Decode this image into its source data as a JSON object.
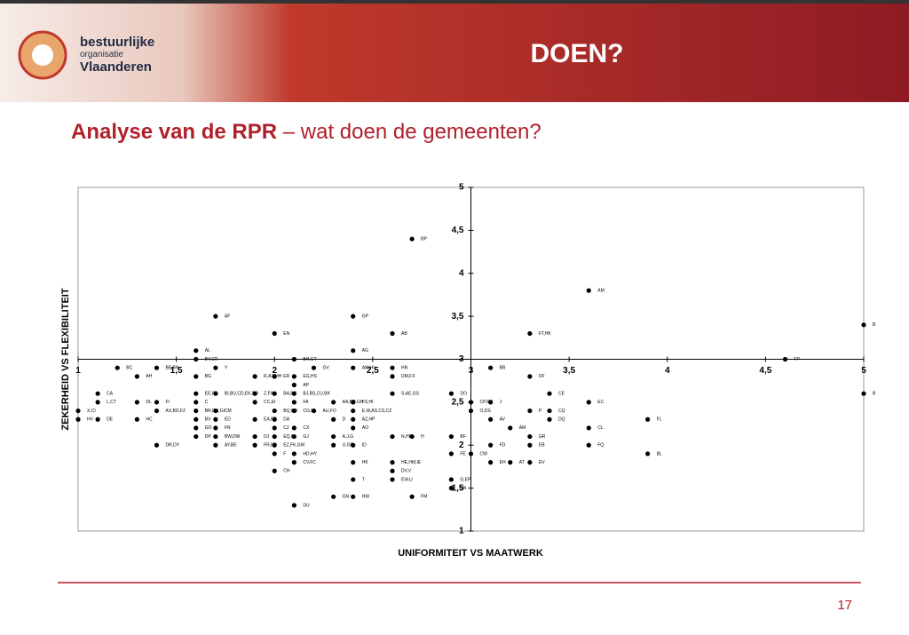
{
  "header": {
    "logo": [
      "bestuurlijke",
      "organisatie",
      "Vlaanderen"
    ],
    "title": "DOEN?"
  },
  "heading": {
    "bold": "Analyse van de RPR",
    "rest": "– wat doen de gemeenten?"
  },
  "page_number": "17",
  "chart_data": {
    "type": "scatter",
    "color": "#000000",
    "xlabel": "UNIFORMITEIT VS MAATWERK",
    "ylabel": "ZEKERHEID VS FLEXIBILITEIT",
    "xlim": [
      1,
      5
    ],
    "ylim": [
      1,
      5
    ],
    "xticks": [
      1,
      {
        "value": 1.5,
        "label": "1,5"
      },
      2,
      {
        "value": 2.5,
        "label": "2,5"
      },
      3,
      {
        "value": 3.5,
        "label": "3,5"
      },
      4,
      {
        "value": 4.5,
        "label": "4,5"
      },
      5
    ],
    "yticks": [
      1,
      {
        "value": 1.5,
        "label": "1,5"
      },
      2,
      {
        "value": 2.5,
        "label": "2,5"
      },
      3,
      {
        "value": 3.5,
        "label": "3,5"
      },
      4,
      {
        "value": 4.5,
        "label": "4,5"
      },
      5
    ],
    "cross": [
      3,
      3
    ],
    "point_labels": [
      "BP",
      "AM",
      "B",
      "AF",
      "GP",
      "EN",
      "AB",
      "FT,HK",
      "AL",
      "AG",
      "BY,CR",
      "BH,GT",
      "FP",
      "BC",
      "BE,BN",
      "Y",
      "GV",
      "AW,HI",
      "HN",
      "BB",
      "AH",
      "BG",
      "R,AX,HH",
      "ER",
      "EG,HS",
      "DM,FX",
      "DF",
      "AP",
      "CA",
      "EE,FB",
      "BI,BU,CD,EK,FO",
      "Z,FW",
      "BA,BE",
      "BJ,BS,CU,BK",
      "S,AE,GS",
      "DO",
      "CE",
      "B",
      "L,CT",
      "DL",
      "FI",
      "C",
      "CC,EI",
      "FA",
      "AA,BD,GH",
      "FS,HI",
      "CP,FU",
      "J",
      "EC",
      "X,CI",
      "AX,BD,FZ",
      "BR,DN,GI",
      "CM",
      "BQ,BO",
      "CG,HL",
      "AU,FO",
      "E,W,AS,CS,CZ",
      "O,DS",
      "P",
      "CQ",
      "HV",
      "DE",
      "HC",
      "BV",
      "ED",
      "EA,FE",
      "DA",
      "D",
      "AZ,HP",
      "AV",
      "DQ",
      "FL",
      "AM",
      "GO",
      "FN",
      "CJ",
      "CX",
      "AO",
      "CL",
      "DP",
      "BW,DW",
      "DJ",
      "EQ,BI",
      "GJ",
      "A,J,G",
      "N,HR",
      "H",
      "BF",
      "GR",
      "DR,DY",
      "AY,BE",
      "FR,EB",
      "EZ,FK,GM",
      "U,GF",
      "ID",
      "FD",
      "EB",
      "FQ",
      "F",
      "HD,HY",
      "FE",
      "CW",
      "BL",
      "CV,FC",
      "HK",
      "HE,HM,IE",
      "EH",
      "AT",
      "EV",
      "CH",
      "DV,V",
      "T",
      "EW,U",
      "G,EP",
      "BN",
      "GN",
      "HW",
      "FM",
      "DU"
    ],
    "x": [
      2.7,
      3.6,
      5,
      1.7,
      2.4,
      2.0,
      2.6,
      3.3,
      1.6,
      2.4,
      1.6,
      2.1,
      4.6,
      1.2,
      1.4,
      1.7,
      2.2,
      2.4,
      2.6,
      3.1,
      1.3,
      1.6,
      1.9,
      2.0,
      2.1,
      2.6,
      3.3,
      2.1,
      1.1,
      1.6,
      1.7,
      1.9,
      2.0,
      2.1,
      2.6,
      2.9,
      3.4,
      5,
      1.1,
      1.3,
      1.4,
      1.6,
      1.9,
      2.1,
      2.3,
      2.4,
      3.0,
      3.1,
      3.6,
      1.0,
      1.4,
      1.6,
      1.7,
      2.0,
      2.1,
      2.2,
      2.4,
      3.0,
      3.3,
      3.4,
      1.0,
      1.1,
      1.3,
      1.6,
      1.7,
      1.9,
      2.0,
      2.3,
      2.4,
      3.1,
      3.4,
      3.9,
      3.2,
      1.6,
      1.7,
      2.0,
      2.1,
      2.4,
      3.6,
      1.6,
      1.7,
      1.9,
      2.0,
      2.1,
      2.3,
      2.6,
      2.7,
      2.9,
      3.3,
      1.4,
      1.7,
      1.9,
      2.0,
      2.3,
      2.4,
      3.1,
      3.3,
      3.6,
      2.0,
      2.1,
      2.9,
      3.0,
      3.9,
      2.1,
      2.4,
      2.6,
      3.1,
      3.2,
      3.3,
      2.0,
      2.6,
      2.4,
      2.6,
      2.9,
      2.9,
      2.3,
      2.4,
      2.7,
      2.1
    ],
    "values": [
      4.4,
      3.8,
      3.4,
      3.5,
      3.5,
      3.3,
      3.3,
      3.3,
      3.1,
      3.1,
      3.0,
      3.0,
      3.0,
      2.9,
      2.9,
      2.9,
      2.9,
      2.9,
      2.9,
      2.9,
      2.8,
      2.8,
      2.8,
      2.8,
      2.8,
      2.8,
      2.8,
      2.7,
      2.6,
      2.6,
      2.6,
      2.6,
      2.6,
      2.6,
      2.6,
      2.6,
      2.6,
      2.6,
      2.5,
      2.5,
      2.5,
      2.5,
      2.5,
      2.5,
      2.5,
      2.5,
      2.5,
      2.5,
      2.5,
      2.4,
      2.4,
      2.4,
      2.4,
      2.4,
      2.4,
      2.4,
      2.4,
      2.4,
      2.4,
      2.4,
      2.3,
      2.3,
      2.3,
      2.3,
      2.3,
      2.3,
      2.3,
      2.3,
      2.3,
      2.3,
      2.3,
      2.3,
      2.2,
      2.2,
      2.2,
      2.2,
      2.2,
      2.2,
      2.2,
      2.1,
      2.1,
      2.1,
      2.1,
      2.1,
      2.1,
      2.1,
      2.1,
      2.1,
      2.1,
      2.0,
      2.0,
      2.0,
      2.0,
      2.0,
      2.0,
      2.0,
      2.0,
      2.0,
      1.9,
      1.9,
      1.9,
      1.9,
      1.9,
      1.8,
      1.8,
      1.8,
      1.8,
      1.8,
      1.8,
      1.7,
      1.7,
      1.6,
      1.6,
      1.6,
      1.5,
      1.4,
      1.4,
      1.4,
      1.3
    ]
  }
}
